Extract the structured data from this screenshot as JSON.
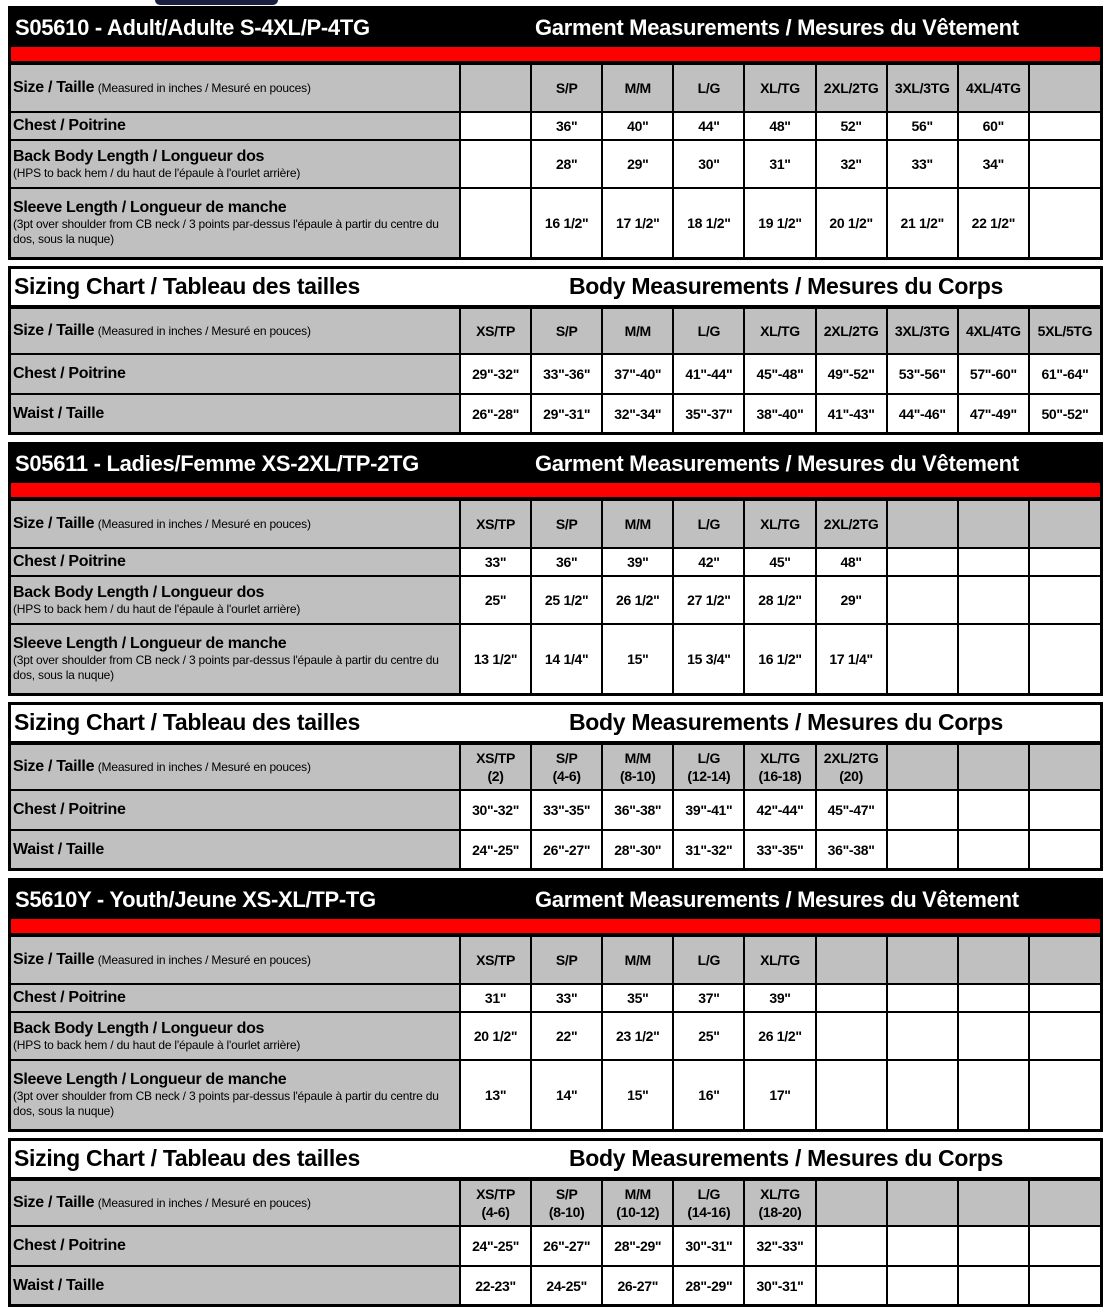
{
  "sections": [
    {
      "kind": "garment",
      "title": "S05610 - Adult/Adulte S-4XL/P-4TG",
      "right_title": "Garment Measurements / Mesures du Vêtement",
      "size_label": "Size / Taille",
      "size_note": "(Measured in inches / Mesuré en pouces)",
      "sizes": [
        "",
        "S/P",
        "M/M",
        "L/G",
        "XL/TG",
        "2XL/2TG",
        "3XL/3TG",
        "4XL/4TG",
        ""
      ],
      "rows": [
        {
          "label": "Chest / Poitrine",
          "note": "",
          "values": [
            "",
            "36\"",
            "40\"",
            "44\"",
            "48\"",
            "52\"",
            "56\"",
            "60\"",
            ""
          ]
        },
        {
          "label": "Back Body Length / Longueur dos",
          "note": "(HPS to back hem  / du haut de l'épaule à l'ourlet arrière)",
          "values": [
            "",
            "28\"",
            "29\"",
            "30\"",
            "31\"",
            "32\"",
            "33\"",
            "34\"",
            ""
          ]
        },
        {
          "label": "Sleeve Length / Longueur de manche",
          "note": "(3pt over shoulder from CB neck / 3 points par-dessus l'épaule à partir du centre du dos, sous la nuque)",
          "values": [
            "",
            "16 1/2\"",
            "17 1/2\"",
            "18 1/2\"",
            "19 1/2\"",
            "20 1/2\"",
            "21 1/2\"",
            "22 1/2\"",
            ""
          ]
        }
      ]
    },
    {
      "kind": "body",
      "title": "Sizing Chart / Tableau des tailles",
      "right_title": "Body Measurements / Mesures du Corps",
      "size_label": "Size / Taille",
      "size_note": "(Measured in inches / Mesuré en pouces)",
      "sizes": [
        "XS/TP",
        "S/P",
        "M/M",
        "L/G",
        "XL/TG",
        "2XL/2TG",
        "3XL/3TG",
        "4XL/4TG",
        "5XL/5TG"
      ],
      "rows": [
        {
          "label": "Chest / Poitrine",
          "values": [
            "29\"-32\"",
            "33\"-36\"",
            "37\"-40\"",
            "41\"-44\"",
            "45\"-48\"",
            "49\"-52\"",
            "53\"-56\"",
            "57\"-60\"",
            "61\"-64\""
          ]
        },
        {
          "label": "Waist / Taille",
          "values": [
            "26\"-28\"",
            "29\"-31\"",
            "32\"-34\"",
            "35\"-37\"",
            "38\"-40\"",
            "41\"-43\"",
            "44\"-46\"",
            "47\"-49\"",
            "50\"-52\""
          ]
        }
      ]
    },
    {
      "kind": "garment",
      "title": "S05611 - Ladies/Femme XS-2XL/TP-2TG",
      "right_title": "Garment Measurements / Mesures du Vêtement",
      "size_label": "Size / Taille",
      "size_note": "(Measured in inches / Mesuré en pouces)",
      "sizes": [
        "XS/TP",
        "S/P",
        "M/M",
        "L/G",
        "XL/TG",
        "2XL/2TG",
        "",
        "",
        ""
      ],
      "rows": [
        {
          "label": "Chest / Poitrine",
          "note": "",
          "values": [
            "33\"",
            "36\"",
            "39\"",
            "42\"",
            "45\"",
            "48\"",
            "",
            "",
            ""
          ]
        },
        {
          "label": "Back Body Length / Longueur dos",
          "note": "(HPS to back hem  / du haut de l'épaule à l'ourlet arrière)",
          "values": [
            "25\"",
            "25 1/2\"",
            "26 1/2\"",
            "27 1/2\"",
            "28 1/2\"",
            "29\"",
            "",
            "",
            ""
          ]
        },
        {
          "label": "Sleeve Length / Longueur de manche",
          "note": "(3pt over shoulder from CB neck / 3 points par-dessus l'épaule à partir du centre du dos, sous la nuque)",
          "values": [
            "13 1/2\"",
            "14 1/4\"",
            "15\"",
            "15 3/4\"",
            "16 1/2\"",
            "17 1/4\"",
            "",
            "",
            ""
          ]
        }
      ]
    },
    {
      "kind": "body",
      "title": "Sizing Chart / Tableau des tailles",
      "right_title": "Body Measurements / Mesures du Corps",
      "size_label": "Size / Taille",
      "size_note": "(Measured in inches / Mesuré en pouces)",
      "sizes": [
        "XS/TP\n(2)",
        "S/P\n(4-6)",
        "M/M\n(8-10)",
        "L/G\n(12-14)",
        "XL/TG\n(16-18)",
        "2XL/2TG\n(20)",
        "",
        "",
        ""
      ],
      "rows": [
        {
          "label": "Chest / Poitrine",
          "values": [
            "30\"-32\"",
            "33\"-35\"",
            "36\"-38\"",
            "39\"-41\"",
            "42\"-44\"",
            "45\"-47\"",
            "",
            "",
            ""
          ]
        },
        {
          "label": "Waist / Taille",
          "values": [
            "24\"-25\"",
            "26\"-27\"",
            "28\"-30\"",
            "31\"-32\"",
            "33\"-35\"",
            "36\"-38\"",
            "",
            "",
            ""
          ]
        }
      ]
    },
    {
      "kind": "garment",
      "title": "S5610Y - Youth/Jeune XS-XL/TP-TG",
      "right_title": "Garment Measurements / Mesures du Vêtement",
      "size_label": "Size / Taille",
      "size_note": "(Measured in inches / Mesuré en pouces)",
      "sizes": [
        "XS/TP",
        "S/P",
        "M/M",
        "L/G",
        "XL/TG",
        "",
        "",
        "",
        ""
      ],
      "rows": [
        {
          "label": "Chest / Poitrine",
          "note": "",
          "values": [
            "31\"",
            "33\"",
            "35\"",
            "37\"",
            "39\"",
            "",
            "",
            "",
            ""
          ]
        },
        {
          "label": "Back Body Length / Longueur dos",
          "note": "(HPS to back hem  / du haut de l'épaule à l'ourlet arrière)",
          "values": [
            "20 1/2\"",
            "22\"",
            "23 1/2\"",
            "25\"",
            "26 1/2\"",
            "",
            "",
            "",
            ""
          ]
        },
        {
          "label": "Sleeve Length / Longueur de manche",
          "note": "(3pt over shoulder from CB neck / 3 points par-dessus l'épaule à partir du centre du dos, sous la nuque)",
          "values": [
            "13\"",
            "14\"",
            "15\"",
            "16\"",
            "17\"",
            "",
            "",
            "",
            ""
          ]
        }
      ]
    },
    {
      "kind": "body",
      "title": "Sizing Chart / Tableau des tailles",
      "right_title": "Body Measurements / Mesures du Corps",
      "size_label": "Size / Taille",
      "size_note": "(Measured in inches / Mesuré en pouces)",
      "sizes": [
        "XS/TP\n(4-6)",
        "S/P\n(8-10)",
        "M/M\n(10-12)",
        "L/G\n(14-16)",
        "XL/TG\n(18-20)",
        "",
        "",
        "",
        ""
      ],
      "rows": [
        {
          "label": "Chest / Poitrine",
          "values": [
            "24\"-25\"",
            "26\"-27\"",
            "28\"-29\"",
            "30\"-31\"",
            "32\"-33\"",
            "",
            "",
            "",
            ""
          ]
        },
        {
          "label": "Waist / Taille",
          "values": [
            "22-23\"",
            "24-25\"",
            "26-27\"",
            "28\"-29\"",
            "30\"-31\"",
            "",
            "",
            "",
            ""
          ]
        }
      ]
    }
  ],
  "colors": {
    "header_bg": "#000000",
    "accent_bar": "#ff0000",
    "label_bg": "#c0c0c0"
  }
}
